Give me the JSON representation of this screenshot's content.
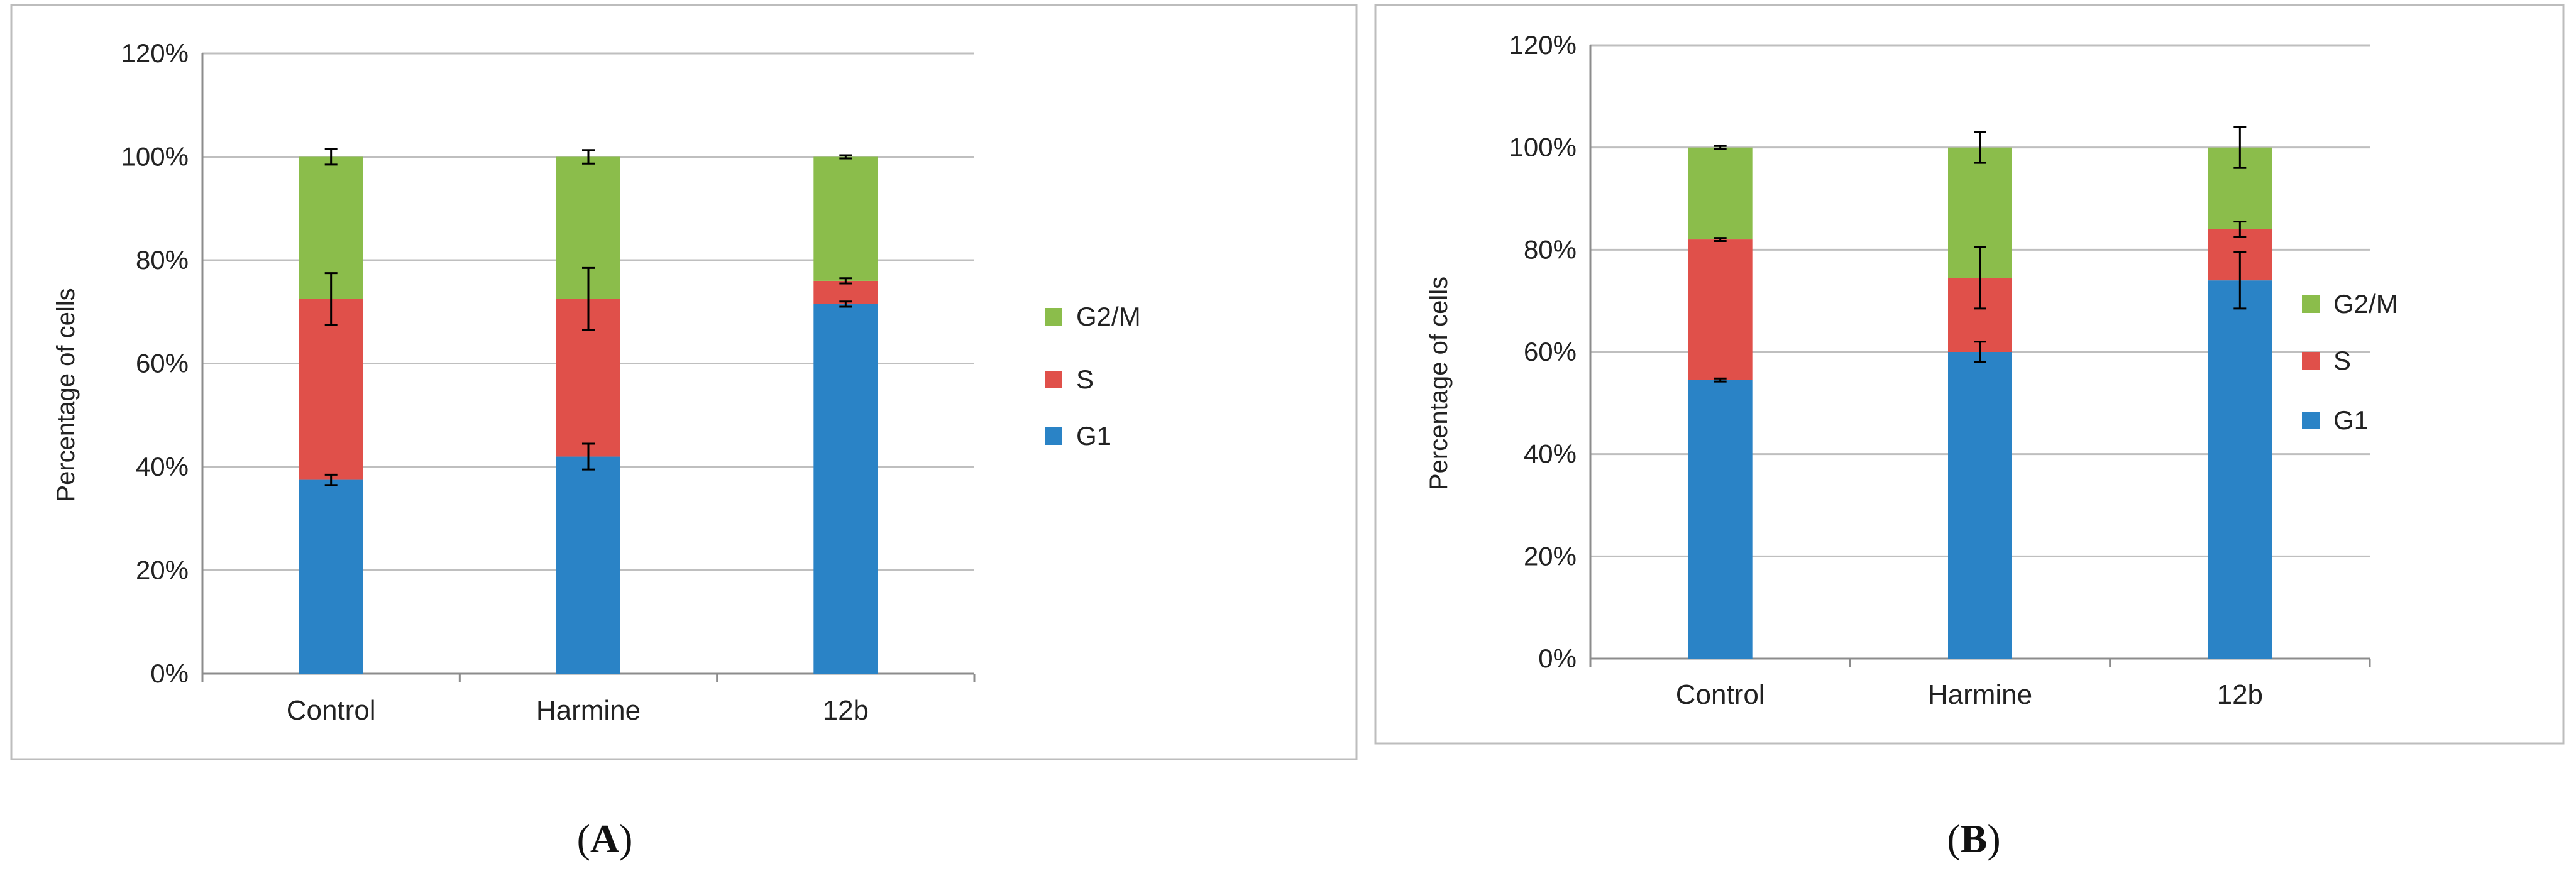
{
  "figure": {
    "panel_labels": [
      {
        "open": "(",
        "letter": "A",
        "close": ")"
      },
      {
        "open": "(",
        "letter": "B",
        "close": ")"
      }
    ]
  },
  "chart_data": [
    {
      "type": "bar",
      "stacked": true,
      "panel": "A",
      "title": "",
      "xlabel": "",
      "ylabel": "Percentage of cells",
      "categories": [
        "Control",
        "Harmine",
        "12b"
      ],
      "ylim": [
        0,
        120
      ],
      "yticks": [
        "0%",
        "20%",
        "40%",
        "60%",
        "80%",
        "100%",
        "120%"
      ],
      "grid": true,
      "legend_position": "right",
      "legend_order": [
        "G2/M",
        "S",
        "G1"
      ],
      "series": [
        {
          "name": "G1",
          "color": "#2a83c6",
          "values": [
            37.5,
            42,
            71.5
          ],
          "errors": [
            1,
            2.5,
            0.5
          ]
        },
        {
          "name": "S",
          "color": "#e0504a",
          "values": [
            35,
            30.5,
            4.5
          ],
          "errors": [
            5,
            6,
            0.5
          ]
        },
        {
          "name": "G2/M",
          "color": "#8bbd4b",
          "values": [
            27.5,
            27.5,
            24
          ],
          "errors": [
            1.5,
            1.3,
            0.3
          ]
        }
      ]
    },
    {
      "type": "bar",
      "stacked": true,
      "panel": "B",
      "title": "",
      "xlabel": "",
      "ylabel": "Percentage of cells",
      "categories": [
        "Control",
        "Harmine",
        "12b"
      ],
      "ylim": [
        0,
        120
      ],
      "yticks": [
        "0%",
        "20%",
        "40%",
        "60%",
        "80%",
        "100%",
        "120%"
      ],
      "grid": true,
      "legend_position": "right",
      "legend_order": [
        "G2/M",
        "S",
        "G1"
      ],
      "series": [
        {
          "name": "G1",
          "color": "#2a83c6",
          "values": [
            54.5,
            60,
            74
          ],
          "errors": [
            0.3,
            2,
            5.5
          ]
        },
        {
          "name": "S",
          "color": "#e0504a",
          "values": [
            27.5,
            14.5,
            10
          ],
          "errors": [
            0.3,
            6,
            1.5
          ]
        },
        {
          "name": "G2/M",
          "color": "#8bbd4b",
          "values": [
            18,
            25.5,
            16
          ],
          "errors": [
            0.3,
            3,
            4
          ]
        }
      ]
    }
  ]
}
